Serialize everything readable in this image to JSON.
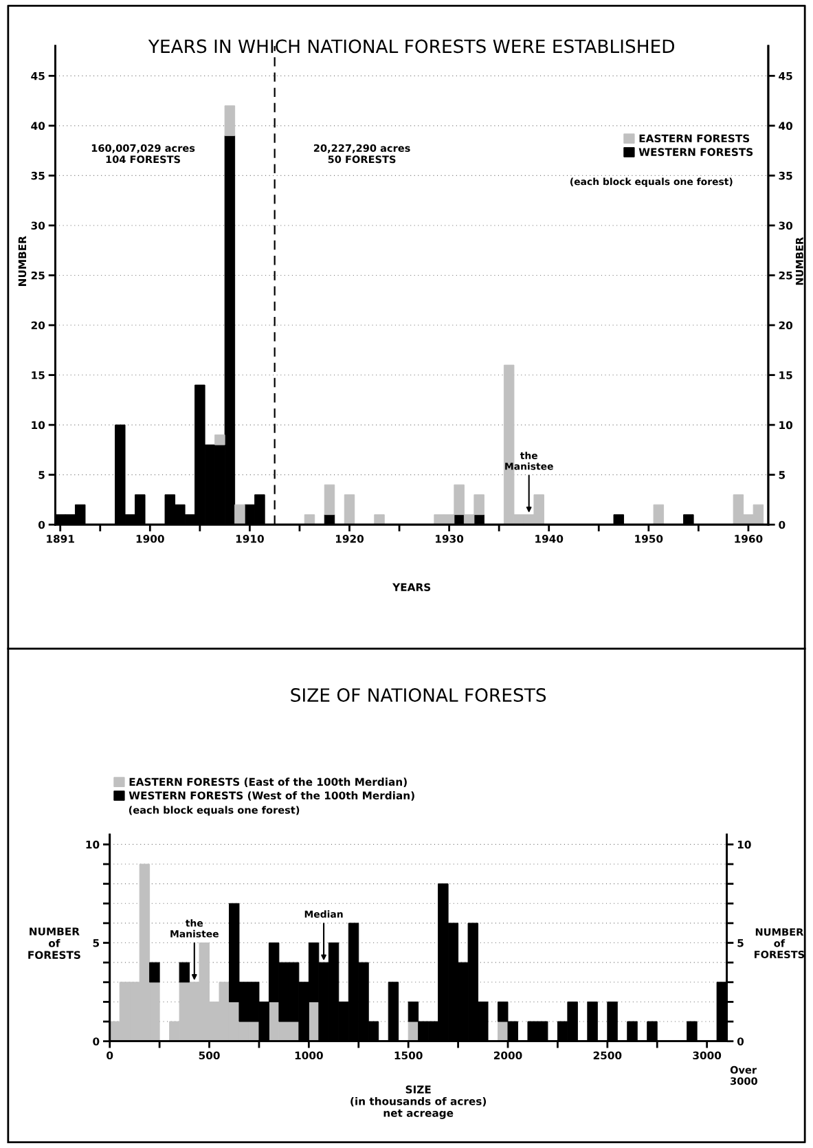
{
  "chart_data": [
    {
      "type": "bar",
      "title": "YEARS IN WHICH NATIONAL FORESTS WERE ESTABLISHED",
      "xlabel": "YEARS",
      "ylabel": "NUMBER",
      "y2label": "NUMBER",
      "x": [
        1891,
        1892,
        1893,
        1897,
        1898,
        1899,
        1902,
        1903,
        1904,
        1905,
        1906,
        1907,
        1908,
        1909,
        1910,
        1911,
        1916,
        1918,
        1920,
        1923,
        1929,
        1930,
        1931,
        1932,
        1933,
        1936,
        1937,
        1938,
        1939,
        1947,
        1951,
        1954,
        1959,
        1960,
        1961
      ],
      "series": [
        {
          "name": "WESTERN FORESTS",
          "color": "#000000",
          "values": [
            1,
            1,
            2,
            10,
            1,
            3,
            3,
            2,
            1,
            14,
            8,
            8,
            39,
            null,
            2,
            3,
            null,
            1,
            null,
            null,
            null,
            null,
            1,
            null,
            1,
            null,
            null,
            null,
            null,
            1,
            null,
            1,
            null,
            null,
            null
          ]
        },
        {
          "name": "EASTERN FORESTS",
          "color": "#c0c0c0",
          "values": [
            null,
            null,
            null,
            null,
            null,
            null,
            null,
            null,
            null,
            null,
            null,
            1,
            3,
            2,
            null,
            null,
            1,
            3,
            3,
            1,
            1,
            1,
            3,
            1,
            2,
            16,
            1,
            1,
            3,
            null,
            2,
            null,
            3,
            1,
            2
          ]
        }
      ],
      "stacked": true,
      "xlim": [
        1890.5,
        1962
      ],
      "xticks": [
        1891,
        {
          "value": 1895,
          "label": null
        },
        1900,
        {
          "value": 1905,
          "label": null
        },
        1910,
        {
          "value": 1915,
          "label": null
        },
        1920,
        {
          "value": 1925,
          "label": null
        },
        1930,
        {
          "value": 1935,
          "label": null
        },
        1940,
        {
          "value": 1945,
          "label": null
        },
        1950,
        {
          "value": 1955,
          "label": null
        },
        1960
      ],
      "ylim": [
        0,
        48
      ],
      "yticks": [
        0,
        5,
        10,
        15,
        20,
        25,
        30,
        35,
        40,
        45
      ],
      "y2lim": [
        0,
        48
      ],
      "y2ticks": [
        0,
        5,
        10,
        15,
        20,
        25,
        30,
        35,
        40,
        45
      ],
      "grid": "y",
      "legend": "top right",
      "ref_lines": [
        {
          "axis": "x",
          "value": 1912.5,
          "color": "#000000",
          "line_style": "dashed"
        }
      ],
      "annotations": [
        "160,007,029 acres\n104 FORESTS",
        "20,227,290 acres\n50 FORESTS",
        "(each block equals one forest)",
        {
          "text": "the\nManistee",
          "x": 1938,
          "y": 1
        }
      ]
    },
    {
      "type": "bar",
      "title": "SIZE OF NATIONAL FORESTS",
      "xlabel": "SIZE\n(in thousands of acres)\nnet acreage",
      "ylabel": "NUMBER\nof\nFORESTS",
      "y2label": "NUMBER\nof\nFORESTS",
      "x": [
        25,
        75,
        125,
        175,
        225,
        325,
        375,
        425,
        475,
        525,
        575,
        625,
        675,
        725,
        775,
        825,
        875,
        925,
        975,
        1025,
        1075,
        1125,
        1175,
        1225,
        1275,
        1325,
        1425,
        1525,
        1575,
        1625,
        1675,
        1725,
        1775,
        1825,
        1875,
        1975,
        2025,
        2125,
        2175,
        2275,
        2325,
        2425,
        2525,
        2625,
        2725,
        2925,
        3075
      ],
      "series": [
        {
          "name": "EASTERN FORESTS (East of the 100th Merdian)",
          "color": "#c0c0c0",
          "values": [
            1,
            3,
            3,
            9,
            3,
            1,
            3,
            3,
            5,
            2,
            3,
            2,
            1,
            1,
            null,
            2,
            1,
            1,
            null,
            2,
            null,
            null,
            null,
            null,
            null,
            null,
            null,
            1,
            null,
            null,
            null,
            null,
            null,
            null,
            null,
            1,
            null,
            null,
            null,
            null,
            null,
            null,
            null,
            null,
            null,
            null,
            null
          ]
        },
        {
          "name": "WESTERN FORESTS (West of the 100th Merdian)",
          "color": "#000000",
          "values": [
            null,
            null,
            null,
            null,
            1,
            null,
            1,
            null,
            null,
            null,
            null,
            5,
            2,
            2,
            2,
            3,
            3,
            3,
            3,
            3,
            4,
            5,
            2,
            6,
            4,
            1,
            3,
            1,
            1,
            1,
            8,
            6,
            4,
            6,
            2,
            1,
            1,
            1,
            1,
            1,
            2,
            2,
            2,
            1,
            1,
            1,
            3
          ]
        }
      ],
      "stacked": true,
      "xlim": [
        0,
        3100
      ],
      "xticks": [
        0,
        {
          "value": 250,
          "label": null
        },
        500,
        {
          "value": 750,
          "label": null
        },
        1000,
        {
          "value": 1250,
          "label": null
        },
        1500,
        {
          "value": 1750,
          "label": null
        },
        2000,
        {
          "value": 2250,
          "label": null
        },
        2500,
        {
          "value": 2750,
          "label": null
        },
        3000
      ],
      "ylim": [
        0,
        10.5
      ],
      "yticks": [
        0,
        {
          "value": 1,
          "label": null
        },
        {
          "value": 2,
          "label": null
        },
        {
          "value": 3,
          "label": null
        },
        {
          "value": 4,
          "label": null
        },
        5,
        {
          "value": 6,
          "label": null
        },
        {
          "value": 7,
          "label": null
        },
        {
          "value": 8,
          "label": null
        },
        {
          "value": 9,
          "label": null
        },
        10
      ],
      "y2lim": [
        0,
        10.5
      ],
      "y2ticks": [
        0,
        {
          "value": 1,
          "label": null
        },
        {
          "value": 2,
          "label": null
        },
        {
          "value": 3,
          "label": null
        },
        {
          "value": 4,
          "label": null
        },
        5,
        {
          "value": 6,
          "label": null
        },
        {
          "value": 7,
          "label": null
        },
        {
          "value": 8,
          "label": null
        },
        {
          "value": 9,
          "label": null
        },
        10
      ],
      "grid": "y",
      "legend": "top left",
      "annotations": [
        "(each block equals one forest)",
        "Over\n3000",
        {
          "text": "the\nManistee",
          "x": 425,
          "y": 3
        },
        {
          "text": "Median",
          "x": 1075,
          "y": 4
        }
      ]
    }
  ]
}
